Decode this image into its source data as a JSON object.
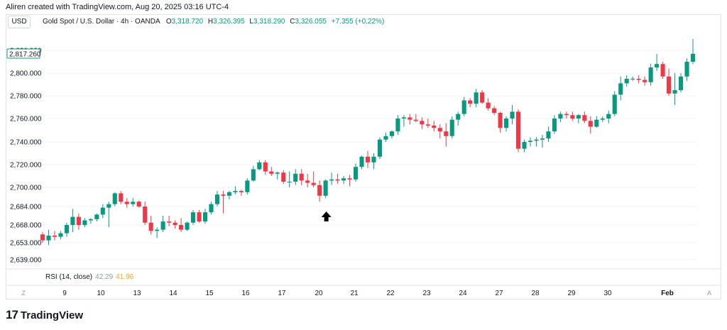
{
  "header": {
    "caption": "Aliren created with TradingView.com, Aug 20, 2025 03:16 UTC-4"
  },
  "toolbar": {
    "currency": "USD"
  },
  "symbol": {
    "name": "Gold Spot / U.S. Dollar · 4h · OANDA",
    "o_label": "O",
    "o_value": "3,318.720",
    "h_label": "H",
    "h_value": "3,326.395",
    "l_label": "L",
    "l_value": "3,318.290",
    "c_label": "C",
    "c_value": "3,326.055",
    "change": "+7.355 (+0.22%)"
  },
  "indicator": {
    "label": "RSI (14, close)",
    "value_a": "42.29",
    "value_b": "41.96"
  },
  "footer": {
    "brand": "TradingView"
  },
  "colors": {
    "up": "#089981",
    "down": "#f23645",
    "grid": "#f0f3fa",
    "axis_text": "#131722"
  },
  "chart_data": {
    "type": "candlestick",
    "y_axis": {
      "ticks": [
        2639,
        2653,
        2668,
        2684,
        2700,
        2720,
        2740,
        2760,
        2780,
        2800,
        2820
      ],
      "tick_labels": [
        "2,639.000",
        "2,653.000",
        "2,668.000",
        "2,684.000",
        "2,700.000",
        "2,720.000",
        "2,740.000",
        "2,760.000",
        "2,780.000",
        "2,800.000",
        "2,820.000"
      ],
      "price_tag": {
        "value": 2817.26,
        "label": "2,817.260"
      }
    },
    "x_axis": {
      "labels": [
        "9",
        "10",
        "13",
        "14",
        "15",
        "16",
        "17",
        "20",
        "21",
        "22",
        "23",
        "24",
        "27",
        "28",
        "29",
        "30",
        "Feb"
      ],
      "bold": [
        "Feb"
      ],
      "left_button": "Z",
      "right_button": "A"
    },
    "annotation": {
      "type": "arrow-up",
      "candle_index": 47
    },
    "candles": [
      [
        2660.0,
        2662.0,
        2653.0,
        2655.0
      ],
      [
        2655.0,
        2664.0,
        2651.0,
        2659.0
      ],
      [
        2659.0,
        2663.0,
        2655.0,
        2658.0
      ],
      [
        2658.0,
        2663.0,
        2656.0,
        2661.0
      ],
      [
        2661.0,
        2670.0,
        2658.0,
        2668.0
      ],
      [
        2668.0,
        2682.0,
        2662.0,
        2675.0
      ],
      [
        2675.0,
        2678.0,
        2664.0,
        2668.0
      ],
      [
        2668.0,
        2674.0,
        2666.0,
        2672.0
      ],
      [
        2672.0,
        2674.0,
        2669.0,
        2673.0
      ],
      [
        2673.0,
        2678.0,
        2671.0,
        2677.0
      ],
      [
        2677.0,
        2686.0,
        2674.0,
        2683.0
      ],
      [
        2683.0,
        2688.0,
        2666.0,
        2686.0
      ],
      [
        2686.0,
        2696.0,
        2684.0,
        2695.0
      ],
      [
        2695.0,
        2697.0,
        2686.0,
        2688.0
      ],
      [
        2688.0,
        2691.0,
        2683.0,
        2686.0
      ],
      [
        2686.0,
        2691.0,
        2684.0,
        2688.0
      ],
      [
        2688.0,
        2689.0,
        2683.0,
        2684.0
      ],
      [
        2684.0,
        2688.0,
        2668.0,
        2670.0
      ],
      [
        2670.0,
        2676.0,
        2660.0,
        2663.0
      ],
      [
        2663.0,
        2666.0,
        2657.0,
        2664.0
      ],
      [
        2664.0,
        2676.0,
        2662.0,
        2671.0
      ],
      [
        2671.0,
        2676.0,
        2667.0,
        2670.0
      ],
      [
        2670.0,
        2672.0,
        2665.0,
        2668.0
      ],
      [
        2668.0,
        2674.0,
        2662.0,
        2664.0
      ],
      [
        2664.0,
        2671.0,
        2663.0,
        2670.0
      ],
      [
        2670.0,
        2681.0,
        2668.0,
        2679.0
      ],
      [
        2679.0,
        2681.0,
        2670.0,
        2671.0
      ],
      [
        2671.0,
        2682.0,
        2669.0,
        2679.0
      ],
      [
        2679.0,
        2688.0,
        2677.0,
        2686.0
      ],
      [
        2686.0,
        2697.0,
        2684.0,
        2694.0
      ],
      [
        2694.0,
        2697.0,
        2678.0,
        2693.0
      ],
      [
        2693.0,
        2697.0,
        2690.0,
        2696.0
      ],
      [
        2696.0,
        2701.0,
        2694.0,
        2697.0
      ],
      [
        2697.0,
        2698.0,
        2693.0,
        2696.0
      ],
      [
        2696.0,
        2708.0,
        2694.0,
        2706.0
      ],
      [
        2706.0,
        2719.0,
        2705.0,
        2716.0
      ],
      [
        2716.0,
        2724.0,
        2715.0,
        2722.0
      ],
      [
        2722.0,
        2724.0,
        2711.0,
        2714.0
      ],
      [
        2714.0,
        2718.0,
        2710.0,
        2712.0
      ],
      [
        2712.0,
        2714.0,
        2707.0,
        2713.0
      ],
      [
        2713.0,
        2715.0,
        2703.0,
        2705.0
      ],
      [
        2705.0,
        2714.0,
        2700.0,
        2705.0
      ],
      [
        2705.0,
        2716.0,
        2702.0,
        2712.0
      ],
      [
        2712.0,
        2716.0,
        2702.0,
        2706.0
      ],
      [
        2706.0,
        2712.0,
        2700.0,
        2704.0
      ],
      [
        2704.0,
        2714.0,
        2700.0,
        2702.0
      ],
      [
        2702.0,
        2706.0,
        2688.0,
        2693.0
      ],
      [
        2693.0,
        2707.0,
        2691.0,
        2706.0
      ],
      [
        2706.0,
        2713.0,
        2702.0,
        2707.0
      ],
      [
        2707.0,
        2712.0,
        2703.0,
        2706.0
      ],
      [
        2706.0,
        2710.0,
        2703.0,
        2708.0
      ],
      [
        2708.0,
        2711.0,
        2701.0,
        2707.0
      ],
      [
        2707.0,
        2721.0,
        2705.0,
        2718.0
      ],
      [
        2718.0,
        2728.0,
        2716.0,
        2727.0
      ],
      [
        2727.0,
        2732.0,
        2717.0,
        2722.0
      ],
      [
        2722.0,
        2730.0,
        2716.0,
        2727.0
      ],
      [
        2727.0,
        2744.0,
        2725.0,
        2742.0
      ],
      [
        2742.0,
        2748.0,
        2740.0,
        2745.0
      ],
      [
        2745.0,
        2750.0,
        2743.0,
        2749.0
      ],
      [
        2749.0,
        2763.0,
        2746.0,
        2760.0
      ],
      [
        2760.0,
        2763.0,
        2753.0,
        2761.0
      ],
      [
        2761.0,
        2764.0,
        2755.0,
        2759.0
      ],
      [
        2759.0,
        2764.0,
        2757.0,
        2758.0
      ],
      [
        2758.0,
        2761.0,
        2751.0,
        2755.0
      ],
      [
        2755.0,
        2760.0,
        2752.0,
        2754.0
      ],
      [
        2754.0,
        2758.0,
        2749.0,
        2752.0
      ],
      [
        2752.0,
        2755.0,
        2743.0,
        2749.0
      ],
      [
        2749.0,
        2756.0,
        2736.0,
        2745.0
      ],
      [
        2745.0,
        2762.0,
        2743.0,
        2759.0
      ],
      [
        2759.0,
        2766.0,
        2754.0,
        2764.0
      ],
      [
        2764.0,
        2779.0,
        2762.0,
        2776.0
      ],
      [
        2776.0,
        2778.0,
        2770.0,
        2773.0
      ],
      [
        2773.0,
        2786.0,
        2770.0,
        2783.0
      ],
      [
        2783.0,
        2785.0,
        2773.0,
        2774.0
      ],
      [
        2774.0,
        2778.0,
        2767.0,
        2769.0
      ],
      [
        2769.0,
        2771.0,
        2763.0,
        2765.0
      ],
      [
        2765.0,
        2766.0,
        2748.0,
        2752.0
      ],
      [
        2752.0,
        2762.0,
        2749.0,
        2760.0
      ],
      [
        2760.0,
        2772.0,
        2755.0,
        2766.0
      ],
      [
        2766.0,
        2768.0,
        2731.0,
        2734.0
      ],
      [
        2734.0,
        2742.0,
        2731.0,
        2740.0
      ],
      [
        2740.0,
        2744.0,
        2736.0,
        2741.0
      ],
      [
        2741.0,
        2744.0,
        2736.0,
        2742.0
      ],
      [
        2742.0,
        2746.0,
        2735.0,
        2743.0
      ],
      [
        2743.0,
        2753.0,
        2740.0,
        2749.0
      ],
      [
        2749.0,
        2763.0,
        2747.0,
        2760.0
      ],
      [
        2760.0,
        2766.0,
        2757.0,
        2764.0
      ],
      [
        2764.0,
        2766.0,
        2760.0,
        2763.0
      ],
      [
        2763.0,
        2766.0,
        2758.0,
        2760.0
      ],
      [
        2760.0,
        2764.0,
        2756.0,
        2763.0
      ],
      [
        2763.0,
        2766.0,
        2756.0,
        2758.0
      ],
      [
        2758.0,
        2762.0,
        2747.0,
        2753.0
      ],
      [
        2753.0,
        2762.0,
        2752.0,
        2759.0
      ],
      [
        2759.0,
        2762.0,
        2757.0,
        2760.0
      ],
      [
        2760.0,
        2767.0,
        2756.0,
        2764.0
      ],
      [
        2764.0,
        2784.0,
        2762.0,
        2781.0
      ],
      [
        2781.0,
        2797.0,
        2776.0,
        2791.0
      ],
      [
        2791.0,
        2798.0,
        2788.0,
        2795.0
      ],
      [
        2795.0,
        2797.0,
        2793.0,
        2795.0
      ],
      [
        2795.0,
        2798.0,
        2791.0,
        2794.0
      ],
      [
        2794.0,
        2797.0,
        2789.0,
        2792.0
      ],
      [
        2792.0,
        2808.0,
        2789.0,
        2805.0
      ],
      [
        2805.0,
        2817.0,
        2802.0,
        2808.0
      ],
      [
        2808.0,
        2810.0,
        2795.0,
        2797.0
      ],
      [
        2797.0,
        2804.0,
        2780.0,
        2782.0
      ],
      [
        2782.0,
        2800.0,
        2772.0,
        2785.0
      ],
      [
        2785.0,
        2800.0,
        2783.0,
        2797.0
      ],
      [
        2797.0,
        2813.0,
        2793.0,
        2810.0
      ],
      [
        2810.0,
        2830.0,
        2808.0,
        2817.0
      ]
    ]
  }
}
